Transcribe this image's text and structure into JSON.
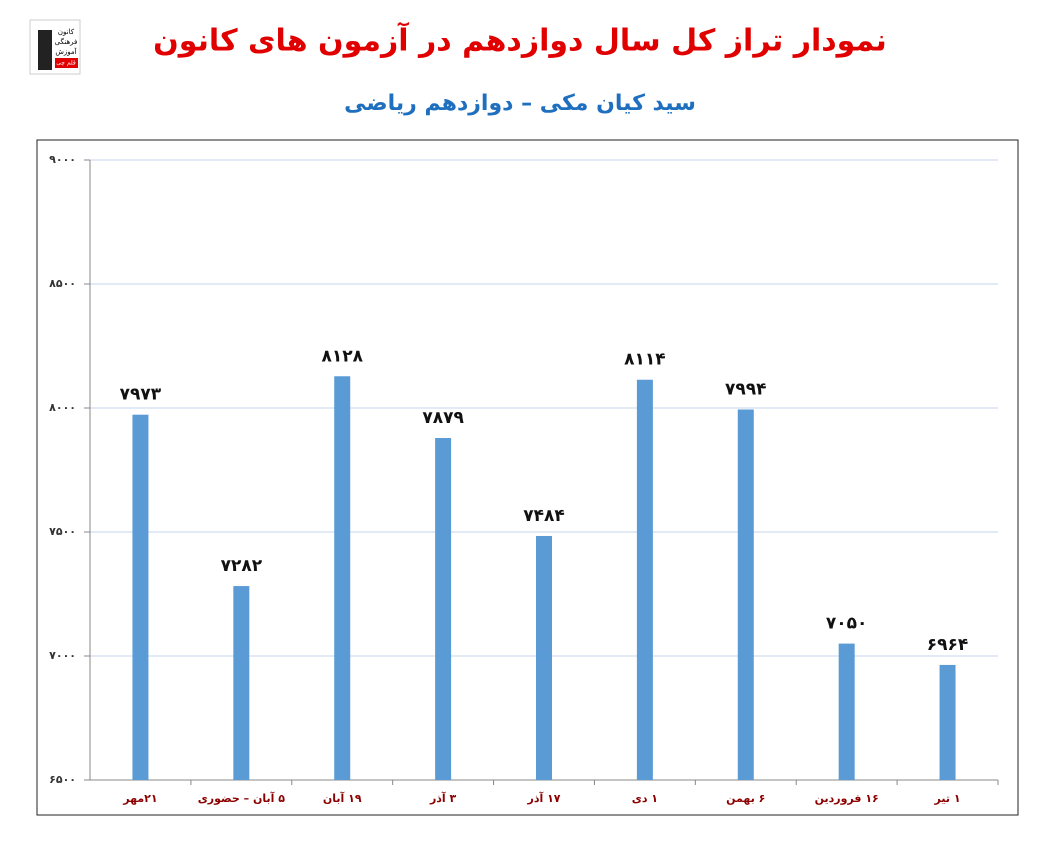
{
  "logo": {
    "lines": [
      "کانون",
      "فرهنگی",
      "آموزش",
      "قلم چی"
    ]
  },
  "chart_data": {
    "type": "bar",
    "title": "نمودار تراز کل سال دوازدهم در آزمون های کانون",
    "subtitle": "سید کیان مکی – دوازدهم ریاضی",
    "categories": [
      "۲۱مهر",
      "۵ آبان – حضوری",
      "۱۹ آبان",
      "۳ آذر",
      "۱۷ آذر",
      "۱ دی",
      "۶ بهمن",
      "۱۶ فروردین",
      "۱ تیر"
    ],
    "values": [
      7973,
      7282,
      8128,
      7879,
      7484,
      8114,
      7994,
      7050,
      6964
    ],
    "value_labels": [
      "۷۹۷۳",
      "۷۲۸۲",
      "۸۱۲۸",
      "۷۸۷۹",
      "۷۴۸۴",
      "۸۱۱۴",
      "۷۹۹۴",
      "۷۰۵۰",
      "۶۹۶۴"
    ],
    "color": "#5b9bd5",
    "ylim": [
      6500,
      9000
    ],
    "yticks": [
      {
        "value": 6500,
        "label": "۶۵۰۰"
      },
      {
        "value": 7000,
        "label": "۷۰۰۰"
      },
      {
        "value": 7500,
        "label": "۷۵۰۰"
      },
      {
        "value": 8000,
        "label": "۸۰۰۰"
      },
      {
        "value": 8500,
        "label": "۸۵۰۰"
      },
      {
        "value": 9000,
        "label": "۹۰۰۰"
      }
    ],
    "grid": true
  }
}
